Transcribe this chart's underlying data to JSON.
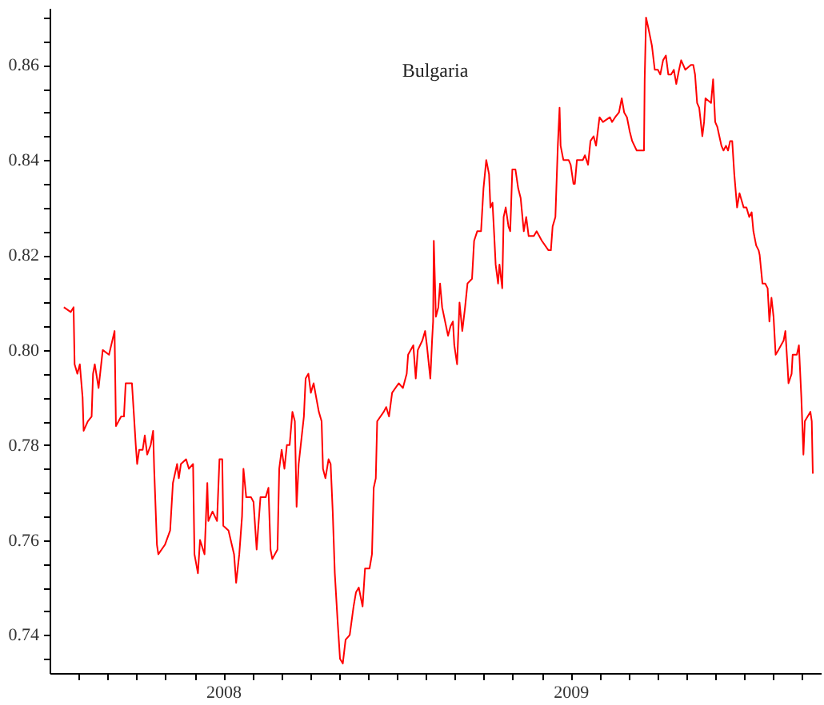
{
  "chart_data": {
    "type": "line",
    "title": "Bulgaria",
    "x": [
      2007.541,
      2007.561,
      2007.569,
      2007.572,
      2007.58,
      2007.587,
      2007.595,
      2007.598,
      2007.61,
      2007.621,
      2007.625,
      2007.63,
      2007.641,
      2007.653,
      2007.671,
      2007.687,
      2007.691,
      2007.706,
      2007.714,
      2007.719,
      2007.737,
      2007.743,
      2007.748,
      2007.752,
      2007.758,
      2007.768,
      2007.774,
      2007.781,
      2007.791,
      2007.798,
      2007.801,
      2007.809,
      2007.813,
      2007.832,
      2007.847,
      2007.855,
      2007.867,
      2007.872,
      2007.878,
      2007.893,
      2007.901,
      2007.913,
      2007.917,
      2007.927,
      2007.933,
      2007.946,
      2007.954,
      2007.957,
      2007.969,
      2007.982,
      2007.989,
      2007.997,
      2008.0,
      2008.015,
      2008.031,
      2008.037,
      2008.046,
      2008.054,
      2008.058,
      2008.066,
      2008.08,
      2008.087,
      2008.096,
      2008.107,
      2008.122,
      2008.13,
      2008.136,
      2008.141,
      2008.156,
      2008.161,
      2008.168,
      2008.176,
      2008.183,
      2008.191,
      2008.199,
      2008.206,
      2008.211,
      2008.217,
      2008.226,
      2008.232,
      2008.237,
      2008.245,
      2008.252,
      2008.26,
      2008.275,
      2008.283,
      2008.287,
      2008.294,
      2008.303,
      2008.309,
      2008.315,
      2008.321,
      2008.329,
      2008.336,
      2008.344,
      2008.352,
      2008.364,
      2008.375,
      2008.382,
      2008.39,
      2008.401,
      2008.408,
      2008.421,
      2008.428,
      2008.433,
      2008.439,
      2008.443,
      2008.462,
      2008.469,
      2008.477,
      2008.486,
      2008.505,
      2008.517,
      2008.528,
      2008.532,
      2008.547,
      2008.554,
      2008.56,
      2008.573,
      2008.581,
      2008.586,
      2008.596,
      2008.601,
      2008.604,
      2008.606,
      2008.609,
      2008.612,
      2008.619,
      2008.624,
      2008.63,
      2008.647,
      2008.654,
      2008.661,
      2008.665,
      2008.673,
      2008.68,
      2008.688,
      2008.696,
      2008.703,
      2008.716,
      2008.722,
      2008.731,
      2008.742,
      2008.749,
      2008.757,
      2008.765,
      2008.769,
      2008.775,
      2008.78,
      2008.784,
      2008.791,
      2008.795,
      2008.803,
      2008.807,
      2008.813,
      2008.821,
      2008.826,
      2008.832,
      2008.841,
      2008.849,
      2008.856,
      2008.865,
      2008.872,
      2008.879,
      2008.894,
      2008.902,
      2008.917,
      2008.936,
      2008.943,
      2008.948,
      2008.956,
      2008.963,
      2008.968,
      2008.971,
      2008.979,
      2008.994,
      2009.0,
      2009.008,
      2009.012,
      2009.018,
      2009.035,
      2009.041,
      2009.05,
      2009.057,
      2009.066,
      2009.073,
      2009.083,
      2009.093,
      2009.113,
      2009.119,
      2009.128,
      2009.139,
      2009.147,
      2009.154,
      2009.162,
      2009.17,
      2009.177,
      2009.19,
      2009.205,
      2009.211,
      2009.213,
      2009.217,
      2009.223,
      2009.234,
      2009.242,
      2009.251,
      2009.258,
      2009.266,
      2009.274,
      2009.281,
      2009.289,
      2009.297,
      2009.304,
      2009.312,
      2009.318,
      2009.33,
      2009.346,
      2009.353,
      2009.358,
      2009.364,
      2009.37,
      2009.376,
      2009.379,
      2009.384,
      2009.388,
      2009.404,
      2009.41,
      2009.416,
      2009.422,
      2009.428,
      2009.434,
      2009.44,
      2009.447,
      2009.453,
      2009.459,
      2009.465,
      2009.471,
      2009.479,
      2009.486,
      2009.498,
      2009.506,
      2009.514,
      2009.521,
      2009.526,
      2009.534,
      2009.541,
      2009.544,
      2009.552,
      2009.56,
      2009.567,
      2009.572,
      2009.578,
      2009.584,
      2009.59,
      2009.598,
      2009.613,
      2009.618,
      2009.624,
      2009.627,
      2009.636,
      2009.639,
      2009.651,
      2009.657,
      2009.664,
      2009.67,
      2009.674,
      2009.69,
      2009.694,
      2009.697
    ],
    "series": [
      {
        "color": "#ff0000",
        "values": [
          0.809,
          0.808,
          0.809,
          0.797,
          0.795,
          0.797,
          0.79,
          0.783,
          0.785,
          0.786,
          0.795,
          0.797,
          0.792,
          0.8,
          0.799,
          0.804,
          0.784,
          0.786,
          0.786,
          0.793,
          0.793,
          0.786,
          0.78,
          0.776,
          0.779,
          0.779,
          0.782,
          0.778,
          0.78,
          0.783,
          0.775,
          0.759,
          0.757,
          0.759,
          0.762,
          0.772,
          0.776,
          0.773,
          0.776,
          0.777,
          0.775,
          0.776,
          0.757,
          0.753,
          0.76,
          0.757,
          0.772,
          0.764,
          0.766,
          0.764,
          0.777,
          0.777,
          0.763,
          0.762,
          0.757,
          0.751,
          0.757,
          0.765,
          0.775,
          0.769,
          0.769,
          0.768,
          0.758,
          0.769,
          0.769,
          0.771,
          0.758,
          0.756,
          0.758,
          0.775,
          0.779,
          0.775,
          0.78,
          0.78,
          0.787,
          0.785,
          0.767,
          0.776,
          0.782,
          0.786,
          0.794,
          0.795,
          0.791,
          0.793,
          0.787,
          0.785,
          0.775,
          0.773,
          0.777,
          0.776,
          0.766,
          0.753,
          0.743,
          0.735,
          0.734,
          0.739,
          0.74,
          0.746,
          0.749,
          0.75,
          0.746,
          0.754,
          0.754,
          0.757,
          0.771,
          0.773,
          0.785,
          0.787,
          0.788,
          0.786,
          0.791,
          0.793,
          0.792,
          0.795,
          0.799,
          0.801,
          0.794,
          0.8,
          0.802,
          0.804,
          0.801,
          0.794,
          0.802,
          0.806,
          0.823,
          0.815,
          0.807,
          0.809,
          0.814,
          0.809,
          0.803,
          0.805,
          0.806,
          0.801,
          0.797,
          0.81,
          0.804,
          0.809,
          0.814,
          0.815,
          0.823,
          0.825,
          0.825,
          0.834,
          0.84,
          0.837,
          0.83,
          0.831,
          0.824,
          0.818,
          0.814,
          0.818,
          0.813,
          0.828,
          0.83,
          0.826,
          0.825,
          0.838,
          0.838,
          0.834,
          0.832,
          0.825,
          0.828,
          0.824,
          0.824,
          0.825,
          0.823,
          0.821,
          0.821,
          0.826,
          0.828,
          0.843,
          0.851,
          0.843,
          0.84,
          0.84,
          0.839,
          0.835,
          0.835,
          0.84,
          0.84,
          0.841,
          0.839,
          0.844,
          0.845,
          0.843,
          0.849,
          0.848,
          0.849,
          0.848,
          0.849,
          0.85,
          0.853,
          0.85,
          0.849,
          0.846,
          0.844,
          0.842,
          0.842,
          0.842,
          0.857,
          0.87,
          0.868,
          0.864,
          0.859,
          0.859,
          0.858,
          0.861,
          0.862,
          0.858,
          0.858,
          0.859,
          0.856,
          0.859,
          0.861,
          0.859,
          0.86,
          0.86,
          0.858,
          0.852,
          0.851,
          0.847,
          0.845,
          0.848,
          0.853,
          0.852,
          0.857,
          0.848,
          0.847,
          0.845,
          0.843,
          0.842,
          0.843,
          0.842,
          0.844,
          0.844,
          0.837,
          0.83,
          0.833,
          0.83,
          0.83,
          0.828,
          0.829,
          0.825,
          0.822,
          0.821,
          0.82,
          0.814,
          0.814,
          0.813,
          0.806,
          0.811,
          0.807,
          0.799,
          0.8,
          0.802,
          0.804,
          0.797,
          0.793,
          0.795,
          0.799,
          0.799,
          0.801,
          0.79,
          0.778,
          0.785,
          0.787,
          0.785,
          0.774
        ]
      }
    ],
    "xlim": [
      2007.5,
      2009.72
    ],
    "xticks": [
      {
        "value": 2007.583,
        "label": null
      },
      {
        "value": 2007.667,
        "label": null
      },
      {
        "value": 2007.75,
        "label": null
      },
      {
        "value": 2007.833,
        "label": null
      },
      {
        "value": 2007.917,
        "label": null
      },
      2008,
      {
        "value": 2008.083,
        "label": null
      },
      {
        "value": 2008.167,
        "label": null
      },
      {
        "value": 2008.25,
        "label": null
      },
      {
        "value": 2008.333,
        "label": null
      },
      {
        "value": 2008.417,
        "label": null
      },
      {
        "value": 2008.5,
        "label": null
      },
      {
        "value": 2008.583,
        "label": null
      },
      {
        "value": 2008.667,
        "label": null
      },
      {
        "value": 2008.75,
        "label": null
      },
      {
        "value": 2008.833,
        "label": null
      },
      {
        "value": 2008.917,
        "label": null
      },
      2009,
      {
        "value": 2009.083,
        "label": null
      },
      {
        "value": 2009.167,
        "label": null
      },
      {
        "value": 2009.25,
        "label": null
      },
      {
        "value": 2009.333,
        "label": null
      },
      {
        "value": 2009.417,
        "label": null
      },
      {
        "value": 2009.5,
        "label": null
      },
      {
        "value": 2009.583,
        "label": null
      },
      {
        "value": 2009.667,
        "label": null
      }
    ],
    "ylim": [
      0.732,
      0.872
    ],
    "yticks": [
      {
        "value": 0.735,
        "label": null
      },
      {
        "value": 0.74,
        "label": "0.74"
      },
      {
        "value": 0.745,
        "label": null
      },
      {
        "value": 0.75,
        "label": null
      },
      {
        "value": 0.755,
        "label": null
      },
      {
        "value": 0.76,
        "label": "0.76"
      },
      {
        "value": 0.765,
        "label": null
      },
      {
        "value": 0.77,
        "label": null
      },
      {
        "value": 0.775,
        "label": null
      },
      {
        "value": 0.78,
        "label": "0.78"
      },
      {
        "value": 0.785,
        "label": null
      },
      {
        "value": 0.79,
        "label": null
      },
      {
        "value": 0.795,
        "label": null
      },
      {
        "value": 0.8,
        "label": "0.80"
      },
      {
        "value": 0.805,
        "label": null
      },
      {
        "value": 0.81,
        "label": null
      },
      {
        "value": 0.815,
        "label": null
      },
      {
        "value": 0.82,
        "label": "0.82"
      },
      {
        "value": 0.825,
        "label": null
      },
      {
        "value": 0.83,
        "label": null
      },
      {
        "value": 0.835,
        "label": null
      },
      {
        "value": 0.84,
        "label": "0.84"
      },
      {
        "value": 0.845,
        "label": null
      },
      {
        "value": 0.85,
        "label": null
      },
      {
        "value": 0.855,
        "label": null
      },
      {
        "value": 0.86,
        "label": "0.86"
      },
      {
        "value": 0.865,
        "label": null
      },
      {
        "value": 0.87,
        "label": null
      }
    ],
    "grid": false,
    "marker": "none",
    "line_style": "solid"
  }
}
